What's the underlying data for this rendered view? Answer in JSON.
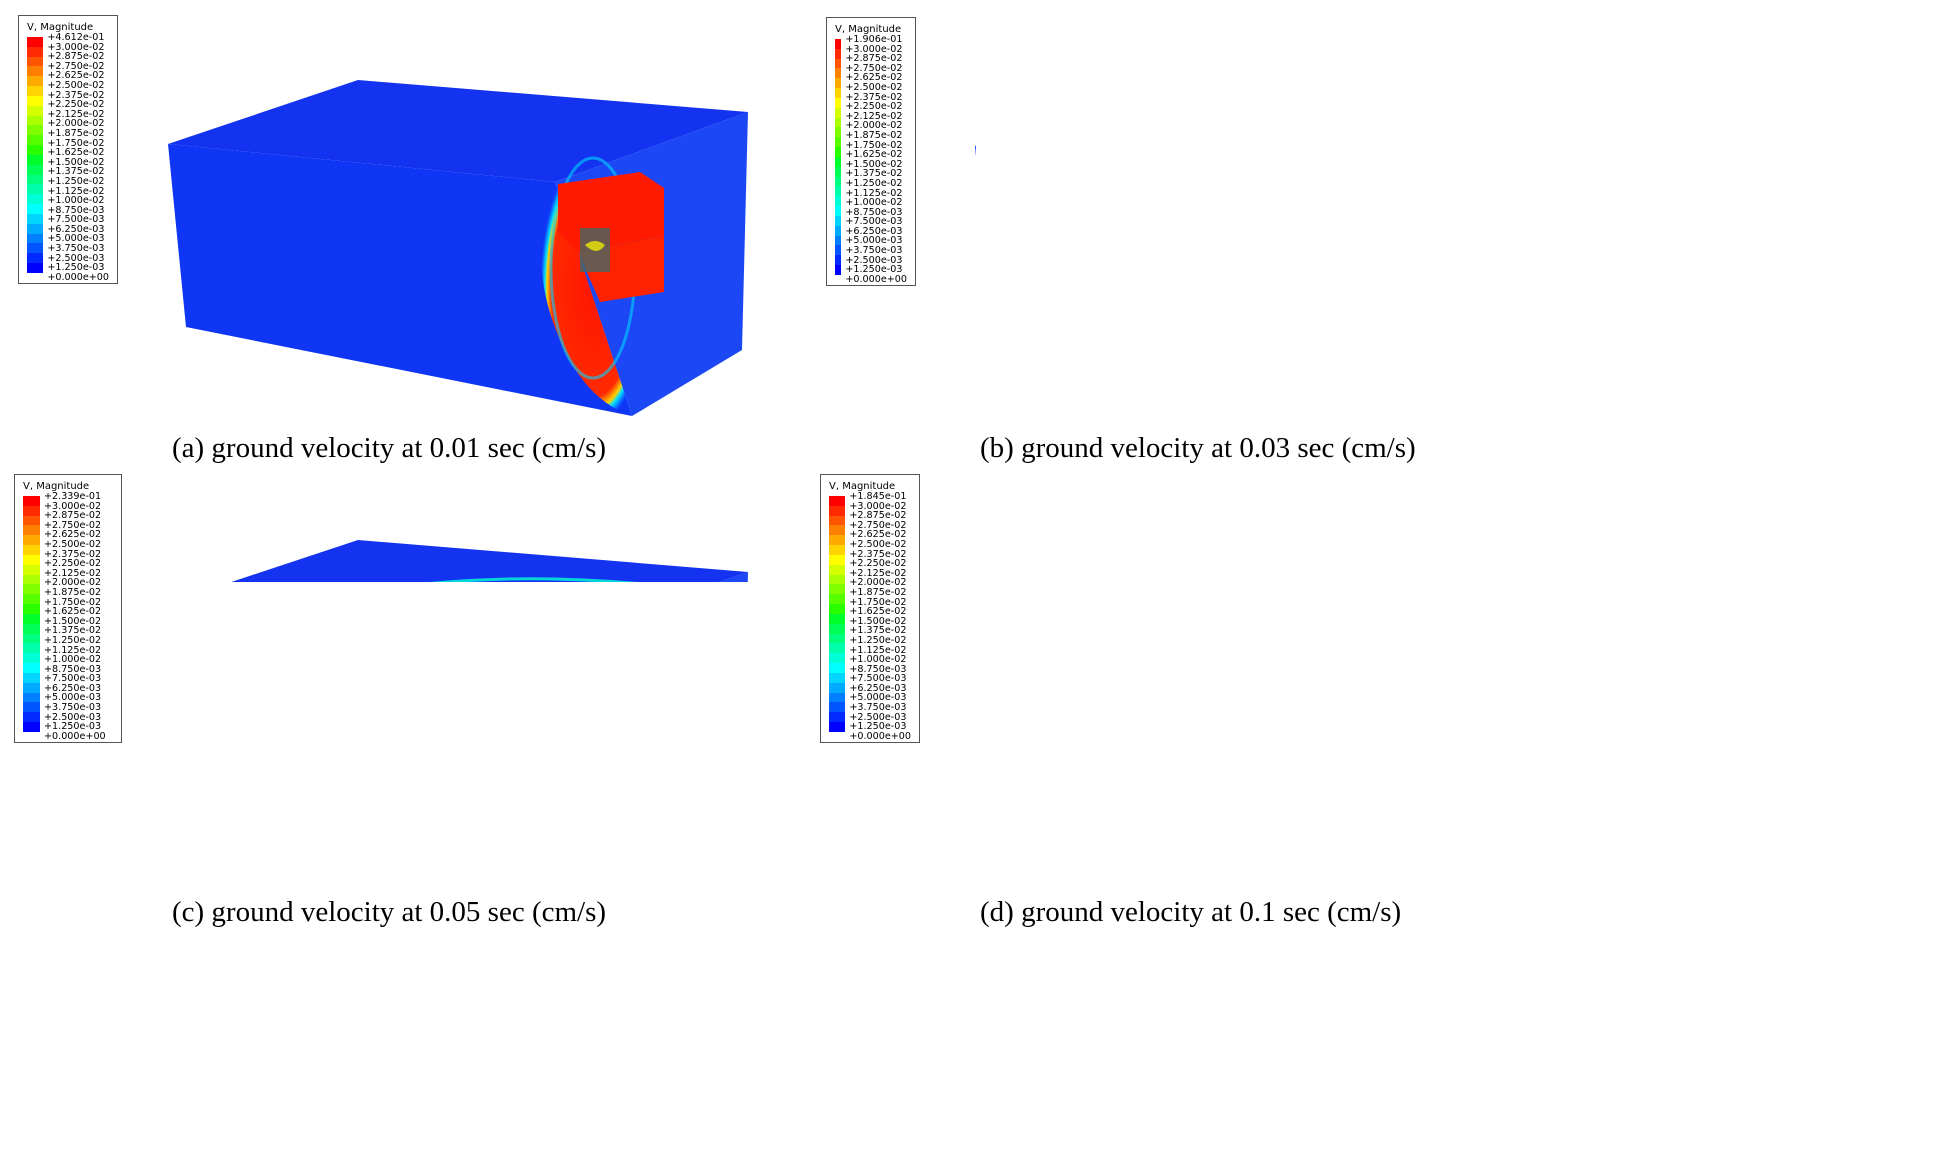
{
  "legend_title": "V, Magnitude",
  "legend_ticks_common": [
    "+3.000e-02",
    "+2.875e-02",
    "+2.750e-02",
    "+2.625e-02",
    "+2.500e-02",
    "+2.375e-02",
    "+2.250e-02",
    "+2.125e-02",
    "+2.000e-02",
    "+1.875e-02",
    "+1.750e-02",
    "+1.625e-02",
    "+1.500e-02",
    "+1.375e-02",
    "+1.250e-02",
    "+1.125e-02",
    "+1.000e-02",
    "+8.750e-03",
    "+7.500e-03",
    "+6.250e-03",
    "+5.000e-03",
    "+3.750e-03",
    "+2.500e-03",
    "+1.250e-03",
    "+0.000e+00"
  ],
  "legend_colors": [
    "#ff0000",
    "#ff2a00",
    "#ff5500",
    "#ff7f00",
    "#ffaa00",
    "#ffd400",
    "#ffff00",
    "#d4ff00",
    "#aaff00",
    "#7fff00",
    "#55ff00",
    "#2aff00",
    "#00ff2a",
    "#00ff55",
    "#00ff7f",
    "#00ffaa",
    "#00ffd4",
    "#00ffff",
    "#00d4ff",
    "#00aaff",
    "#007fff",
    "#0055ff",
    "#002aff",
    "#0000ff"
  ],
  "panels": [
    {
      "id": "a",
      "caption": "(a) ground velocity at 0.01 sec (cm/s)",
      "max_label": "+4.612e-01"
    },
    {
      "id": "b",
      "caption": "(b) ground velocity at 0.03 sec (cm/s)",
      "max_label": "+1.906e-01"
    },
    {
      "id": "c",
      "caption": "(c) ground velocity at 0.05 sec (cm/s)",
      "max_label": "+2.339e-01"
    },
    {
      "id": "d",
      "caption": "(d) ground velocity at 0.1 sec (cm/s)",
      "max_label": "+1.845e-01"
    }
  ]
}
